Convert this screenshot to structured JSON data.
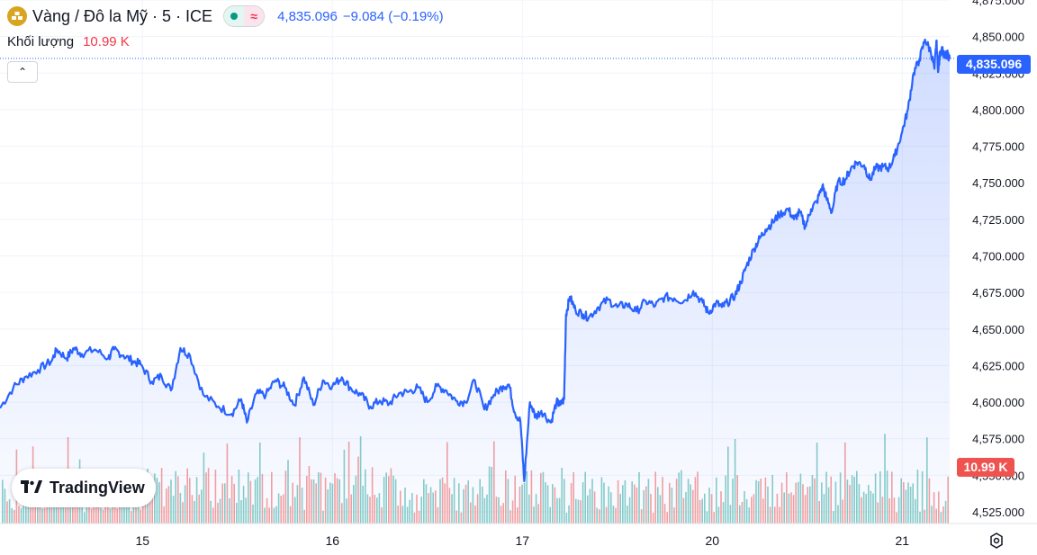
{
  "header": {
    "symbol_title": "Vàng / Đô la Mỹ · 5 · ICE",
    "last_price": "4,835.096",
    "change": "−9.084 (−0.19%)",
    "icon": "gold-bars-icon",
    "status_icons": [
      "market-open-dot-icon",
      "wave-icon"
    ]
  },
  "volume": {
    "label": "Khối lượng",
    "value": "10.99 K"
  },
  "price_tag": "4,835.096",
  "volume_tag": "10.99 K",
  "brand": "TradingView",
  "colors": {
    "line": "#2962ff",
    "area_top": "#2962ff",
    "volume_up": "#26a69a",
    "volume_down": "#ef5350",
    "price_tag_bg": "#2962ff",
    "volume_tag_bg": "#ef5350",
    "gold_icon": "#d9a520"
  },
  "chart_data": {
    "type": "area",
    "ylim": [
      4517,
      4875
    ],
    "y_ticks": [
      "4,875.000",
      "4,850.000",
      "4,825.000",
      "4,800.000",
      "4,775.000",
      "4,750.000",
      "4,725.000",
      "4,700.000",
      "4,675.000",
      "4,650.000",
      "4,625.000",
      "4,600.000",
      "4,575.000",
      "4,550.000",
      "4,525.000"
    ],
    "y_tick_values": [
      4875,
      4850,
      4825,
      4800,
      4775,
      4750,
      4725,
      4700,
      4675,
      4650,
      4625,
      4600,
      4575,
      4550,
      4525
    ],
    "x_ticks": [
      "15",
      "16",
      "17",
      "20",
      "21"
    ],
    "x_tick_positions": [
      0.4,
      1.4,
      2.4,
      3.4,
      4.4
    ],
    "x_range": [
      -0.35,
      4.65
    ],
    "series": [
      {
        "x": [
          -0.35,
          -0.28,
          -0.22,
          -0.15,
          -0.08,
          -0.05,
          0.0,
          0.04,
          0.08,
          0.15,
          0.22,
          0.25,
          0.3,
          0.35,
          0.39,
          0.45,
          0.5,
          0.55,
          0.6,
          0.65,
          0.72,
          0.8,
          0.87,
          0.92,
          0.95,
          1.0,
          1.05,
          1.1,
          1.15,
          1.2,
          1.25,
          1.3,
          1.35,
          1.4,
          1.45,
          1.5,
          1.55,
          1.6,
          1.65,
          1.7,
          1.75,
          1.8,
          1.85,
          1.9,
          1.95,
          2.0,
          2.05,
          2.1,
          2.15,
          2.2,
          2.25,
          2.3,
          2.33,
          2.36,
          2.39,
          2.41,
          2.44,
          2.47,
          2.5,
          2.55,
          2.58,
          2.6,
          2.62,
          2.63,
          2.65,
          2.68,
          2.72,
          2.75,
          2.8,
          2.85,
          2.9,
          2.95,
          3.0,
          3.05,
          3.1,
          3.15,
          3.2,
          3.25,
          3.3,
          3.35,
          3.38,
          3.42,
          3.45,
          3.48,
          3.52,
          3.55,
          3.58,
          3.62,
          3.65,
          3.68,
          3.72,
          3.75,
          3.8,
          3.83,
          3.86,
          3.89,
          3.92,
          3.95,
          3.98,
          4.0,
          4.03,
          4.06,
          4.1,
          4.13,
          4.16,
          4.2,
          4.23,
          4.26,
          4.3,
          4.33,
          4.36,
          4.4,
          4.43,
          4.46,
          4.49,
          4.52,
          4.55,
          4.57,
          4.58,
          4.59,
          4.6,
          4.61,
          4.62,
          4.63,
          4.64,
          4.65
        ],
        "y": [
          4596,
          4610,
          4617,
          4622,
          4628,
          4636,
          4630,
          4637,
          4633,
          4636,
          4630,
          4636,
          4632,
          4628,
          4626,
          4614,
          4618,
          4608,
          4637,
          4632,
          4605,
          4597,
          4592,
          4602,
          4586,
          4606,
          4605,
          4615,
          4610,
          4598,
          4617,
          4598,
          4615,
          4611,
          4617,
          4609,
          4605,
          4597,
          4601,
          4599,
          4606,
          4607,
          4610,
          4600,
          4611,
          4608,
          4601,
          4600,
          4615,
          4595,
          4605,
          4611,
          4612,
          4593,
          4587,
          4546,
          4600,
          4590,
          4594,
          4586,
          4600,
          4598,
          4602,
          4660,
          4672,
          4663,
          4660,
          4658,
          4665,
          4670,
          4665,
          4667,
          4662,
          4669,
          4666,
          4672,
          4671,
          4669,
          4676,
          4668,
          4661,
          4668,
          4665,
          4668,
          4673,
          4682,
          4693,
          4705,
          4712,
          4718,
          4723,
          4728,
          4732,
          4725,
          4730,
          4720,
          4732,
          4737,
          4748,
          4740,
          4730,
          4750,
          4752,
          4760,
          4764,
          4762,
          4752,
          4760,
          4761,
          4760,
          4768,
          4785,
          4800,
          4825,
          4834,
          4848,
          4840,
          4828,
          4847,
          4826,
          4839,
          4842,
          4836,
          4837,
          4838,
          4835
        ]
      }
    ]
  }
}
